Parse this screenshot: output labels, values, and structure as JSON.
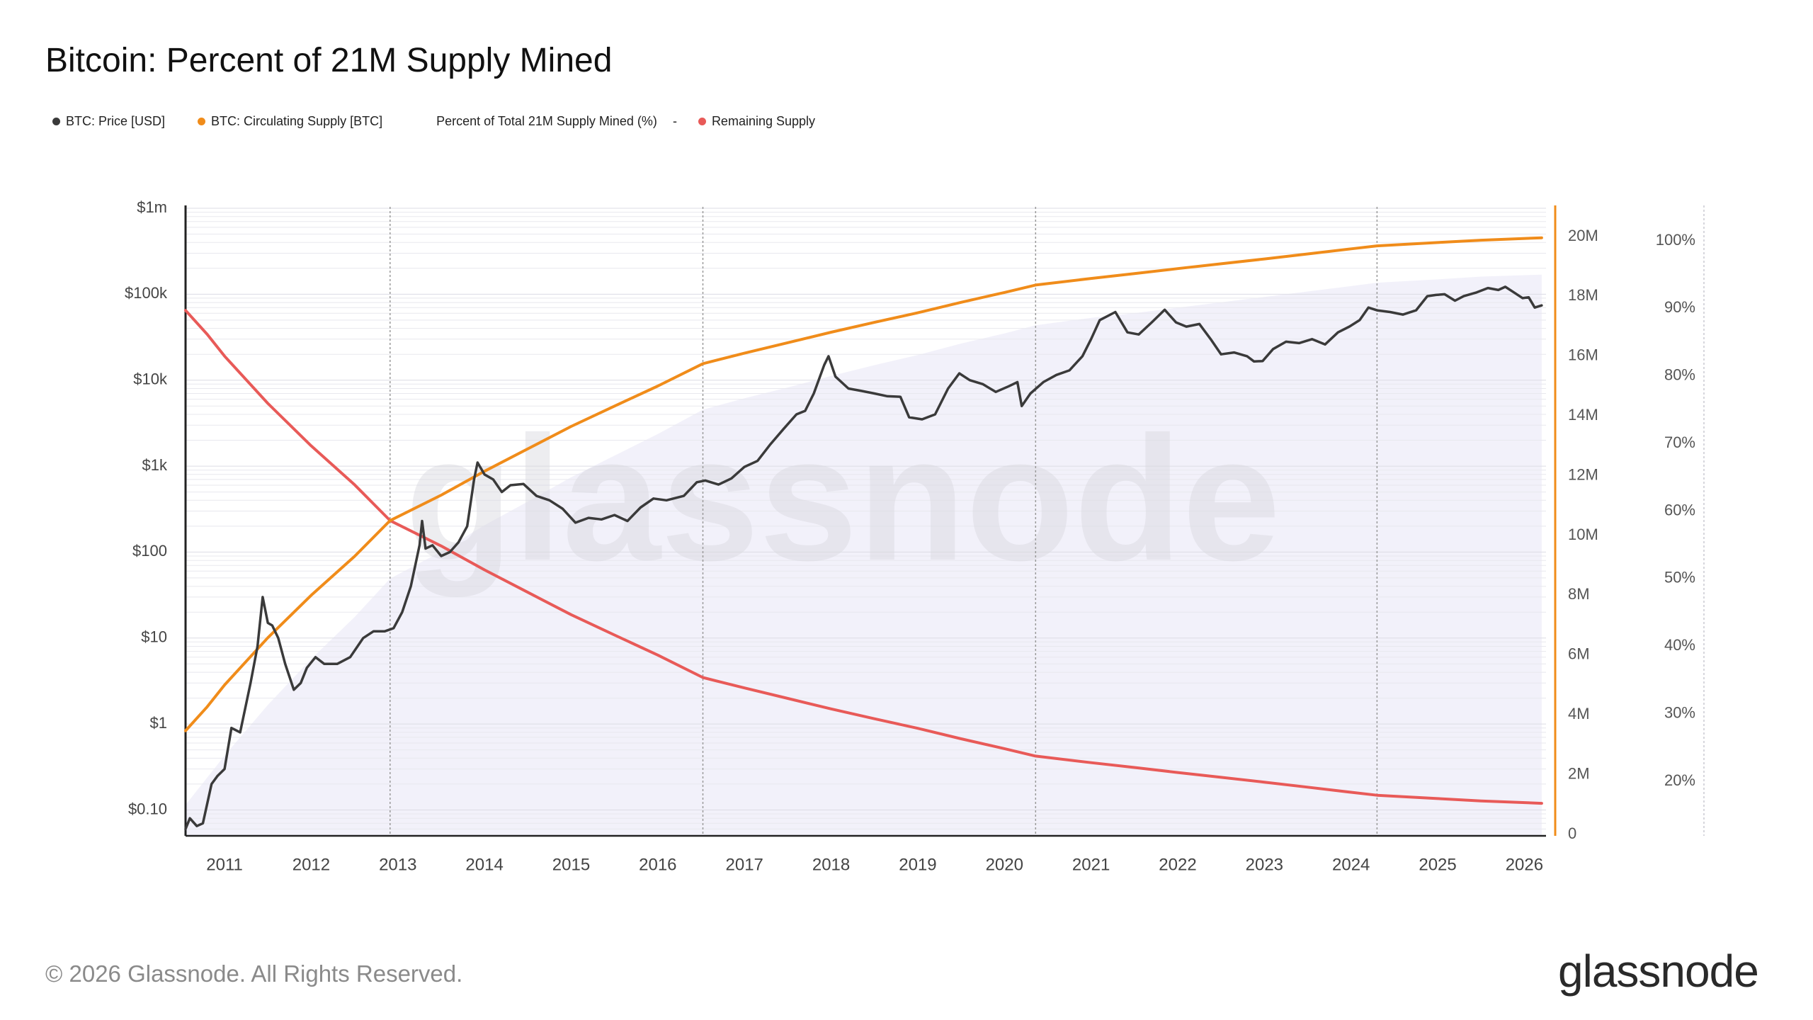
{
  "title": "Bitcoin: Percent of 21M Supply Mined",
  "legend": {
    "items": [
      {
        "label": "BTC: Price [USD]",
        "color": "#3a3a3a"
      },
      {
        "label": "BTC: Circulating Supply [BTC]",
        "color": "#f08c1a"
      },
      {
        "label": "Percent of Total 21M Supply Mined (%)",
        "color": ""
      },
      {
        "label": "Remaining Supply",
        "color": "#e85a58"
      }
    ],
    "dash": "-"
  },
  "watermark": "glassnode",
  "footer": {
    "copyright": "© 2026 Glassnode. All Rights Reserved.",
    "brand": "glassnode"
  },
  "colors": {
    "price": "#3a3a3a",
    "supply": "#f08c1a",
    "remaining": "#e85a58",
    "percent_fill": "#ecebf8",
    "grid": "#e8e8ee",
    "halving": "#9a9a9a"
  },
  "chart_data": {
    "type": "line",
    "x_ticks": [
      "2011",
      "2012",
      "2013",
      "2014",
      "2015",
      "2016",
      "2017",
      "2018",
      "2019",
      "2020",
      "2021",
      "2022",
      "2023",
      "2024",
      "2025",
      "2026"
    ],
    "x_range": [
      2010.55,
      2026.25
    ],
    "left_axis": {
      "scale": "log",
      "range": [
        0.05,
        1000000
      ],
      "ticks": [
        {
          "v": 0.1,
          "label": "$0.10"
        },
        {
          "v": 1,
          "label": "$1"
        },
        {
          "v": 10,
          "label": "$10"
        },
        {
          "v": 100,
          "label": "$100"
        },
        {
          "v": 1000,
          "label": "$1k"
        },
        {
          "v": 10000,
          "label": "$10k"
        },
        {
          "v": 100000,
          "label": "$100k"
        },
        {
          "v": 1000000,
          "label": "$1m"
        }
      ]
    },
    "right_axis": {
      "scale": "linear",
      "range": [
        0,
        21000000
      ],
      "ticks": [
        {
          "v": 0,
          "label": "0"
        },
        {
          "v": 2000000,
          "label": "2M"
        },
        {
          "v": 4000000,
          "label": "4M"
        },
        {
          "v": 6000000,
          "label": "6M"
        },
        {
          "v": 8000000,
          "label": "8M"
        },
        {
          "v": 10000000,
          "label": "10M"
        },
        {
          "v": 12000000,
          "label": "12M"
        },
        {
          "v": 14000000,
          "label": "14M"
        },
        {
          "v": 16000000,
          "label": "16M"
        },
        {
          "v": 18000000,
          "label": "18M"
        },
        {
          "v": 20000000,
          "label": "20M"
        }
      ]
    },
    "percent_axis": {
      "scale": "linear",
      "range": [
        12,
        104
      ],
      "ticks": [
        {
          "v": 20,
          "label": "20%"
        },
        {
          "v": 30,
          "label": "30%"
        },
        {
          "v": 40,
          "label": "40%"
        },
        {
          "v": 50,
          "label": "50%"
        },
        {
          "v": 60,
          "label": "60%"
        },
        {
          "v": 70,
          "label": "70%"
        },
        {
          "v": 80,
          "label": "80%"
        },
        {
          "v": 90,
          "label": "90%"
        },
        {
          "v": 100,
          "label": "100%"
        }
      ]
    },
    "halvings": [
      2012.91,
      2016.52,
      2020.36,
      2024.3
    ],
    "series": [
      {
        "name": "BTC: Price [USD]",
        "axis": "left",
        "points": [
          [
            2010.55,
            0.06
          ],
          [
            2010.6,
            0.08
          ],
          [
            2010.68,
            0.065
          ],
          [
            2010.75,
            0.07
          ],
          [
            2010.85,
            0.2
          ],
          [
            2010.92,
            0.25
          ],
          [
            2011.0,
            0.3
          ],
          [
            2011.08,
            0.9
          ],
          [
            2011.18,
            0.8
          ],
          [
            2011.3,
            3
          ],
          [
            2011.38,
            8
          ],
          [
            2011.44,
            30
          ],
          [
            2011.5,
            15
          ],
          [
            2011.55,
            14
          ],
          [
            2011.62,
            10
          ],
          [
            2011.7,
            5
          ],
          [
            2011.8,
            2.5
          ],
          [
            2011.88,
            3
          ],
          [
            2011.95,
            4.5
          ],
          [
            2012.05,
            6
          ],
          [
            2012.15,
            5
          ],
          [
            2012.3,
            5
          ],
          [
            2012.45,
            6
          ],
          [
            2012.6,
            10
          ],
          [
            2012.72,
            12
          ],
          [
            2012.85,
            12
          ],
          [
            2012.95,
            13
          ],
          [
            2013.05,
            20
          ],
          [
            2013.15,
            40
          ],
          [
            2013.25,
            120
          ],
          [
            2013.28,
            230
          ],
          [
            2013.32,
            110
          ],
          [
            2013.4,
            120
          ],
          [
            2013.5,
            90
          ],
          [
            2013.6,
            100
          ],
          [
            2013.7,
            130
          ],
          [
            2013.8,
            200
          ],
          [
            2013.88,
            700
          ],
          [
            2013.92,
            1100
          ],
          [
            2014.0,
            800
          ],
          [
            2014.1,
            700
          ],
          [
            2014.2,
            500
          ],
          [
            2014.3,
            600
          ],
          [
            2014.45,
            620
          ],
          [
            2014.6,
            450
          ],
          [
            2014.75,
            400
          ],
          [
            2014.9,
            320
          ],
          [
            2015.05,
            220
          ],
          [
            2015.2,
            250
          ],
          [
            2015.35,
            240
          ],
          [
            2015.5,
            270
          ],
          [
            2015.65,
            230
          ],
          [
            2015.8,
            330
          ],
          [
            2015.95,
            420
          ],
          [
            2016.1,
            400
          ],
          [
            2016.3,
            450
          ],
          [
            2016.45,
            650
          ],
          [
            2016.55,
            680
          ],
          [
            2016.7,
            610
          ],
          [
            2016.85,
            720
          ],
          [
            2017.0,
            980
          ],
          [
            2017.15,
            1150
          ],
          [
            2017.3,
            1800
          ],
          [
            2017.45,
            2700
          ],
          [
            2017.6,
            4000
          ],
          [
            2017.7,
            4400
          ],
          [
            2017.8,
            7000
          ],
          [
            2017.92,
            15000
          ],
          [
            2017.97,
            19000
          ],
          [
            2018.05,
            11000
          ],
          [
            2018.2,
            8000
          ],
          [
            2018.35,
            7500
          ],
          [
            2018.5,
            7000
          ],
          [
            2018.65,
            6500
          ],
          [
            2018.8,
            6400
          ],
          [
            2018.9,
            3700
          ],
          [
            2019.05,
            3500
          ],
          [
            2019.2,
            4000
          ],
          [
            2019.35,
            8000
          ],
          [
            2019.48,
            12000
          ],
          [
            2019.6,
            10000
          ],
          [
            2019.75,
            9000
          ],
          [
            2019.9,
            7300
          ],
          [
            2020.05,
            8500
          ],
          [
            2020.15,
            9500
          ],
          [
            2020.2,
            5000
          ],
          [
            2020.3,
            7000
          ],
          [
            2020.45,
            9500
          ],
          [
            2020.6,
            11500
          ],
          [
            2020.75,
            13000
          ],
          [
            2020.9,
            19000
          ],
          [
            2021.0,
            30000
          ],
          [
            2021.1,
            50000
          ],
          [
            2021.28,
            62000
          ],
          [
            2021.42,
            36000
          ],
          [
            2021.55,
            34000
          ],
          [
            2021.7,
            47000
          ],
          [
            2021.85,
            66000
          ],
          [
            2021.98,
            47000
          ],
          [
            2022.1,
            42000
          ],
          [
            2022.25,
            45000
          ],
          [
            2022.38,
            30000
          ],
          [
            2022.5,
            20000
          ],
          [
            2022.65,
            21000
          ],
          [
            2022.8,
            19000
          ],
          [
            2022.88,
            16500
          ],
          [
            2022.98,
            16700
          ],
          [
            2023.1,
            23000
          ],
          [
            2023.25,
            28000
          ],
          [
            2023.4,
            27000
          ],
          [
            2023.55,
            30000
          ],
          [
            2023.7,
            26000
          ],
          [
            2023.85,
            36000
          ],
          [
            2023.98,
            42000
          ],
          [
            2024.1,
            50000
          ],
          [
            2024.2,
            70000
          ],
          [
            2024.3,
            65000
          ],
          [
            2024.45,
            62000
          ],
          [
            2024.6,
            58000
          ],
          [
            2024.75,
            65000
          ],
          [
            2024.88,
            95000
          ],
          [
            2024.98,
            98000
          ],
          [
            2025.08,
            100000
          ],
          [
            2025.2,
            84000
          ],
          [
            2025.3,
            95000
          ],
          [
            2025.45,
            105000
          ],
          [
            2025.58,
            118000
          ],
          [
            2025.7,
            112000
          ],
          [
            2025.78,
            122000
          ],
          [
            2025.88,
            105000
          ],
          [
            2025.98,
            90000
          ],
          [
            2026.05,
            92000
          ],
          [
            2026.12,
            70000
          ],
          [
            2026.2,
            74000
          ]
        ]
      },
      {
        "name": "BTC: Circulating Supply [BTC]",
        "axis": "right",
        "points": [
          [
            2010.55,
            3470000
          ],
          [
            2010.8,
            4270000
          ],
          [
            2011.0,
            5000000
          ],
          [
            2011.5,
            6580000
          ],
          [
            2012.0,
            8000000
          ],
          [
            2012.5,
            9300000
          ],
          [
            2012.91,
            10500000
          ],
          [
            2013.5,
            11350000
          ],
          [
            2014.0,
            12150000
          ],
          [
            2014.5,
            12900000
          ],
          [
            2015.0,
            13650000
          ],
          [
            2015.5,
            14330000
          ],
          [
            2016.0,
            15000000
          ],
          [
            2016.52,
            15750000
          ],
          [
            2017.0,
            16100000
          ],
          [
            2017.5,
            16450000
          ],
          [
            2018.0,
            16800000
          ],
          [
            2018.5,
            17130000
          ],
          [
            2019.0,
            17450000
          ],
          [
            2019.5,
            17800000
          ],
          [
            2020.0,
            18130000
          ],
          [
            2020.36,
            18380000
          ],
          [
            2021.0,
            18600000
          ],
          [
            2021.5,
            18760000
          ],
          [
            2022.0,
            18930000
          ],
          [
            2022.5,
            19090000
          ],
          [
            2023.0,
            19250000
          ],
          [
            2023.5,
            19420000
          ],
          [
            2024.0,
            19590000
          ],
          [
            2024.3,
            19690000
          ],
          [
            2025.0,
            19800000
          ],
          [
            2025.5,
            19880000
          ],
          [
            2026.2,
            19960000
          ]
        ]
      },
      {
        "name": "Remaining Supply",
        "axis": "right",
        "points": [
          [
            2010.55,
            17530000
          ],
          [
            2010.8,
            16730000
          ],
          [
            2011.0,
            16000000
          ],
          [
            2011.5,
            14420000
          ],
          [
            2012.0,
            13000000
          ],
          [
            2012.5,
            11700000
          ],
          [
            2012.91,
            10500000
          ],
          [
            2013.5,
            9650000
          ],
          [
            2014.0,
            8850000
          ],
          [
            2014.5,
            8100000
          ],
          [
            2015.0,
            7350000
          ],
          [
            2015.5,
            6670000
          ],
          [
            2016.0,
            6000000
          ],
          [
            2016.52,
            5250000
          ],
          [
            2017.0,
            4900000
          ],
          [
            2017.5,
            4550000
          ],
          [
            2018.0,
            4200000
          ],
          [
            2018.5,
            3870000
          ],
          [
            2019.0,
            3550000
          ],
          [
            2019.5,
            3200000
          ],
          [
            2020.0,
            2870000
          ],
          [
            2020.36,
            2620000
          ],
          [
            2021.0,
            2400000
          ],
          [
            2021.5,
            2240000
          ],
          [
            2022.0,
            2070000
          ],
          [
            2022.5,
            1910000
          ],
          [
            2023.0,
            1750000
          ],
          [
            2023.5,
            1580000
          ],
          [
            2024.0,
            1410000
          ],
          [
            2024.3,
            1310000
          ],
          [
            2025.0,
            1200000
          ],
          [
            2025.5,
            1120000
          ],
          [
            2026.2,
            1040000
          ]
        ]
      },
      {
        "name": "Percent of Total 21M Supply Mined (%)",
        "axis": "percent",
        "points": [
          [
            2010.55,
            16.5
          ],
          [
            2011.0,
            23.8
          ],
          [
            2011.5,
            31.3
          ],
          [
            2012.0,
            38.1
          ],
          [
            2012.5,
            44.3
          ],
          [
            2012.91,
            50.0
          ],
          [
            2013.5,
            54.0
          ],
          [
            2014.0,
            57.9
          ],
          [
            2014.5,
            61.4
          ],
          [
            2015.0,
            65.0
          ],
          [
            2015.5,
            68.2
          ],
          [
            2016.0,
            71.4
          ],
          [
            2016.52,
            75.0
          ],
          [
            2017.0,
            76.7
          ],
          [
            2017.5,
            78.3
          ],
          [
            2018.0,
            80.0
          ],
          [
            2018.5,
            81.6
          ],
          [
            2019.0,
            83.1
          ],
          [
            2019.5,
            84.8
          ],
          [
            2020.0,
            86.3
          ],
          [
            2020.36,
            87.5
          ],
          [
            2021.0,
            88.6
          ],
          [
            2021.5,
            89.3
          ],
          [
            2022.0,
            90.1
          ],
          [
            2022.5,
            90.9
          ],
          [
            2023.0,
            91.7
          ],
          [
            2023.5,
            92.5
          ],
          [
            2024.0,
            93.3
          ],
          [
            2024.3,
            93.8
          ],
          [
            2025.0,
            94.3
          ],
          [
            2025.5,
            94.7
          ],
          [
            2026.2,
            95.0
          ]
        ]
      }
    ]
  }
}
